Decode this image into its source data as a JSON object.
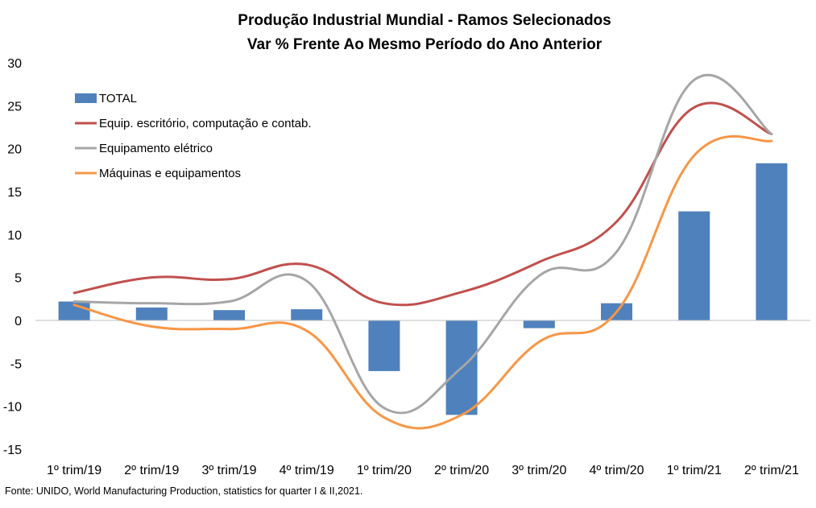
{
  "chart_data": {
    "type": "bar+line",
    "title": "Produção Industrial Mundial - Ramos Selecionados",
    "subtitle": "Var % Frente Ao Mesmo Período do Ano Anterior",
    "categories": [
      "1º trim/19",
      "2º trim/19",
      "3º trim/19",
      "4º trim/19",
      "1º trim/20",
      "2º trim/20",
      "3º trim/20",
      "4º trim/20",
      "1º trim/21",
      "2º trim/21"
    ],
    "ylim": [
      -15,
      30
    ],
    "yticks": [
      30,
      25,
      20,
      15,
      10,
      5,
      0,
      -5,
      -10,
      -15
    ],
    "grid": false,
    "legend_position": "top-left",
    "series": [
      {
        "name": "TOTAL",
        "kind": "bar",
        "color": "#4F81BD",
        "values": [
          2.2,
          1.5,
          1.2,
          1.3,
          -5.9,
          -11.0,
          -0.9,
          2.0,
          12.7,
          18.3
        ]
      },
      {
        "name": "Equip. escritório, computação e contab.",
        "kind": "line",
        "color": "#C0504D",
        "values": [
          3.2,
          5.0,
          4.8,
          6.5,
          2.0,
          3.3,
          6.8,
          11.5,
          24.8,
          21.7
        ]
      },
      {
        "name": "Equipamento elétrico",
        "kind": "line",
        "color": "#A6A6A6",
        "values": [
          2.2,
          2.0,
          2.2,
          4.6,
          -10.2,
          -5.5,
          5.2,
          8.0,
          28.0,
          21.7
        ]
      },
      {
        "name": "Máquinas e equipamentos",
        "kind": "line",
        "color": "#F79646",
        "values": [
          1.8,
          -0.7,
          -1.0,
          -1.2,
          -11.3,
          -11.0,
          -2.5,
          1.0,
          19.2,
          20.9
        ]
      }
    ]
  },
  "source": "Fonte: UNIDO, World Manufacturing Production, statistics for quarter I & II,2021."
}
